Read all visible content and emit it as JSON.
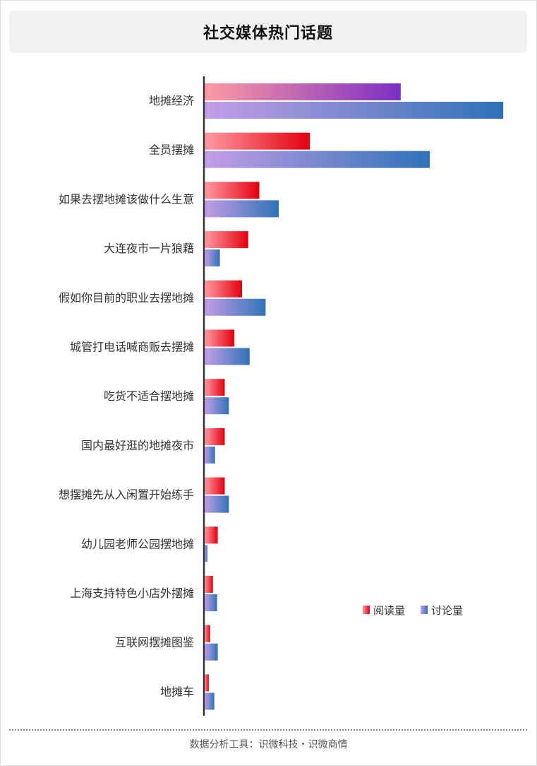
{
  "title": "社交媒体热门话题",
  "footer": "数据分析工具：识微科技・识微商情",
  "colors": {
    "read_start": "#ff9aa2",
    "read_end": "#e3000e",
    "read_first_end": "#7b2fc4",
    "disc_start": "#c49ee6",
    "disc_end": "#2f72b8",
    "axis": "#333333"
  },
  "chart_data": {
    "type": "bar",
    "orientation": "horizontal",
    "categories": [
      "地摊经济",
      "全员摆摊",
      "如果去摆地摊该做什么生意",
      "大连夜市一片狼藉",
      "假如你目前的职业去摆地摊",
      "城管打电话喊商贩去摆摊",
      "吃货不适合摆地摊",
      "国内最好逛的地摊夜市",
      "想摆摊先从入闲置开始练手",
      "幼儿园老师公园摆地摊",
      "上海支持特色小店外摆摊",
      "互联网摆摊图鉴",
      "地摊车"
    ],
    "series": [
      {
        "name": "阅读量",
        "values": [
          283,
          152,
          79,
          63,
          54,
          43,
          29,
          29,
          29,
          19,
          12,
          8,
          6
        ]
      },
      {
        "name": "讨论量",
        "values": [
          431,
          325,
          107,
          22,
          88,
          65,
          35,
          15,
          35,
          4,
          18,
          19,
          14
        ]
      }
    ],
    "xlim": [
      0,
      440
    ],
    "grid": false,
    "legend_position": "right"
  }
}
